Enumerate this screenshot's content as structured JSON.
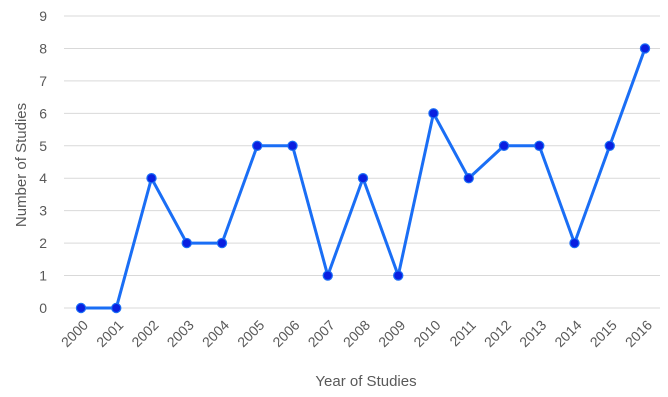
{
  "chart_data": {
    "type": "line",
    "xlabel": "Year of Studies",
    "ylabel": "Number of Studies",
    "categories": [
      "2000",
      "2001",
      "2002",
      "2003",
      "2004",
      "2005",
      "2006",
      "2007",
      "2008",
      "2009",
      "2010",
      "2011",
      "2012",
      "2013",
      "2014",
      "2015",
      "2016"
    ],
    "series": [
      {
        "values": [
          0,
          0,
          4,
          2,
          2,
          5,
          5,
          1,
          4,
          1,
          6,
          4,
          5,
          5,
          2,
          5,
          8
        ]
      }
    ],
    "ylim": [
      0,
      9
    ],
    "yticks": [
      "0",
      "1",
      "2",
      "3",
      "4",
      "5",
      "6",
      "7",
      "8",
      "9"
    ],
    "grid": true,
    "legend": "none",
    "colors": {
      "line": "#1a6ef5",
      "marker_fill": "#0a1fe0",
      "marker_edge": "#1a6ef5",
      "grid": "#d9d9d9"
    }
  }
}
